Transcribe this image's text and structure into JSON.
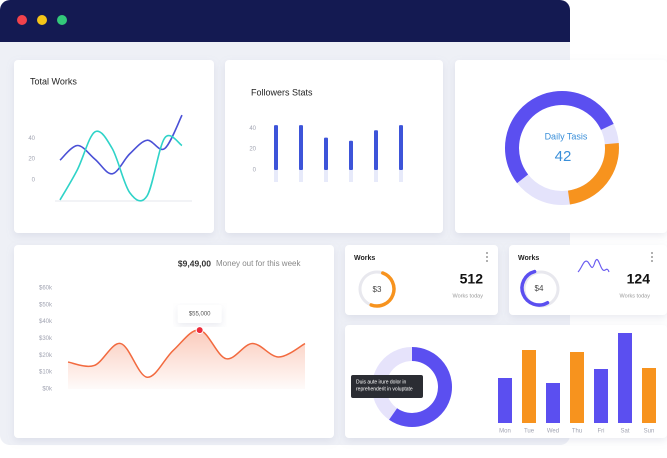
{
  "total_works": {
    "title": "Total Works",
    "type": "line",
    "ylim": [
      -20,
      65
    ],
    "yticks": [
      40,
      20,
      0
    ],
    "series": [
      {
        "color": "#4a50d6",
        "values": [
          19,
          33,
          20,
          6,
          25,
          38,
          30,
          62
        ]
      },
      {
        "color": "#2fd3c8",
        "values": [
          -19,
          10,
          46,
          30,
          -12,
          -15,
          40,
          33
        ]
      }
    ]
  },
  "followers": {
    "title": "Followers Stats",
    "type": "bar",
    "ylim": [
      0,
      45
    ],
    "yticks": [
      40,
      20,
      0
    ],
    "color": "#3d54d9",
    "values": [
      43,
      43,
      31,
      28,
      38,
      43
    ]
  },
  "daily": {
    "title": "Daily Tasis",
    "value": 42
  },
  "money": {
    "amount": "$9,49,00",
    "caption": "Money out for this week",
    "type": "area",
    "color": "#f26a3f",
    "ylim": [
      0,
      60000
    ],
    "yticks": [
      {
        "value": 60000,
        "label": "$60k"
      },
      {
        "value": 50000,
        "label": "$50k"
      },
      {
        "value": 40000,
        "label": "$40k"
      },
      {
        "value": 30000,
        "label": "$30k"
      },
      {
        "value": 20000,
        "label": "$20k"
      },
      {
        "value": 10000,
        "label": "$10k"
      },
      {
        "value": 0,
        "label": "$0k"
      }
    ],
    "values": [
      16000,
      14000,
      27000,
      7000,
      23000,
      35000,
      18000,
      27000,
      19000,
      27000
    ],
    "tooltip": "$55,000"
  },
  "works_cards": [
    {
      "title": "Works",
      "badge": "$3",
      "value": 512,
      "caption": "Works today",
      "color": "#f7931e"
    },
    {
      "title": "Works",
      "badge": "$4",
      "value": 124,
      "caption": "Works today",
      "color": "#5b4ff0"
    }
  ],
  "weekly": {
    "type": "bar",
    "ylim": [
      0,
      100
    ],
    "tooltip": [
      "Duis aute irure dolor in",
      "reprehenderit in voluptate"
    ],
    "categories": [
      "Mon",
      "Tue",
      "Wed",
      "Thu",
      "Fri",
      "Sat",
      "Sun"
    ],
    "series": [
      {
        "color": "#5b4ff0",
        "values": [
          45,
          null,
          40,
          null,
          54,
          90,
          null
        ]
      },
      {
        "color": "#f7931e",
        "values": [
          null,
          73,
          null,
          71,
          null,
          null,
          55
        ]
      }
    ]
  }
}
